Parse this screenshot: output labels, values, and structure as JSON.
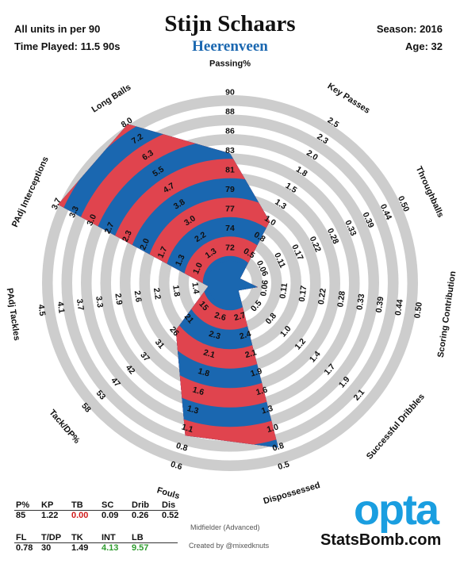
{
  "header": {
    "units": "All units in per 90",
    "time_played": "Time Played: 11.5 90s",
    "season": "Season: 2016",
    "age": "Age: 32",
    "player": "Stijn Schaars",
    "team": "Heerenveen"
  },
  "colors": {
    "red": "#e0444e",
    "blue": "#1a67b0",
    "ring": "#cdcdcd",
    "team": "#1a67b0",
    "good": "#2e9b2e",
    "bad": "#d01c1c"
  },
  "chart_data": {
    "type": "radar",
    "axes": [
      {
        "name": "Passing%",
        "ticks": [
          "72",
          "74",
          "77",
          "79",
          "81",
          "83",
          "86",
          "88",
          "90"
        ],
        "value": 85
      },
      {
        "name": "Key Passes",
        "ticks": [
          "0.5",
          "0.8",
          "1.0",
          "1.3",
          "1.5",
          "1.8",
          "2.0",
          "2.3",
          "2.5"
        ],
        "value": 1.22
      },
      {
        "name": "Throughballs",
        "ticks": [
          "0.06",
          "0.11",
          "0.17",
          "0.22",
          "0.28",
          "0.33",
          "0.39",
          "0.44",
          "0.50"
        ],
        "value": 0.0
      },
      {
        "name": "Scoring Contribution",
        "ticks": [
          "0.06",
          "0.11",
          "0.17",
          "0.22",
          "0.28",
          "0.33",
          "0.39",
          "0.44",
          "0.50"
        ],
        "value": 0.09
      },
      {
        "name": "Successful Dribbles",
        "ticks": [
          "0.5",
          "0.8",
          "1.0",
          "1.2",
          "1.4",
          "1.7",
          "1.9",
          "2.1"
        ],
        "value": 0.26
      },
      {
        "name": "Dispossessed",
        "ticks": [
          "2.7",
          "2.4",
          "2.1",
          "1.9",
          "1.6",
          "1.3",
          "1.0",
          "0.8",
          "0.5"
        ],
        "value": 0.52
      },
      {
        "name": "Fouls",
        "ticks": [
          "2.6",
          "2.3",
          "2.1",
          "1.8",
          "1.6",
          "1.3",
          "1.1",
          "0.8",
          "0.6"
        ],
        "value": 0.78
      },
      {
        "name": "Tack/DP%",
        "ticks": [
          "15",
          "21",
          "26",
          "31",
          "37",
          "42",
          "47",
          "53",
          "58"
        ],
        "value": 30
      },
      {
        "name": "PAdj Tackles",
        "ticks": [
          "1.4",
          "1.8",
          "2.2",
          "2.6",
          "2.9",
          "3.3",
          "3.7",
          "4.1",
          "4.5"
        ],
        "value": 1.49
      },
      {
        "name": "PAdj Interceptions",
        "ticks": [
          "1.0",
          "1.3",
          "1.7",
          "2.0",
          "2.3",
          "2.7",
          "3.0",
          "3.3",
          "3.7"
        ],
        "value": 4.13
      },
      {
        "name": "Long Balls",
        "ticks": [
          "1.3",
          "2.2",
          "3.0",
          "3.8",
          "4.7",
          "5.5",
          "6.3",
          "7.2",
          "8.0"
        ],
        "value": 9.57
      }
    ]
  },
  "stats": {
    "row1": {
      "headers": [
        "P%",
        "KP",
        "TB",
        "SC",
        "Drib",
        "Dis"
      ],
      "values": [
        "85",
        "1.22",
        "0.00",
        "0.09",
        "0.26",
        "0.52"
      ]
    },
    "row2": {
      "headers": [
        "FL",
        "T/DP",
        "TK",
        "INT",
        "LB"
      ],
      "values": [
        "0.78",
        "30",
        "1.49",
        "4.13",
        "9.57"
      ]
    }
  },
  "footer": {
    "position": "Midfielder (Advanced)",
    "credit": "Created by @mixedknuts",
    "opta": "opta",
    "statsbomb": "StatsBomb.com"
  }
}
